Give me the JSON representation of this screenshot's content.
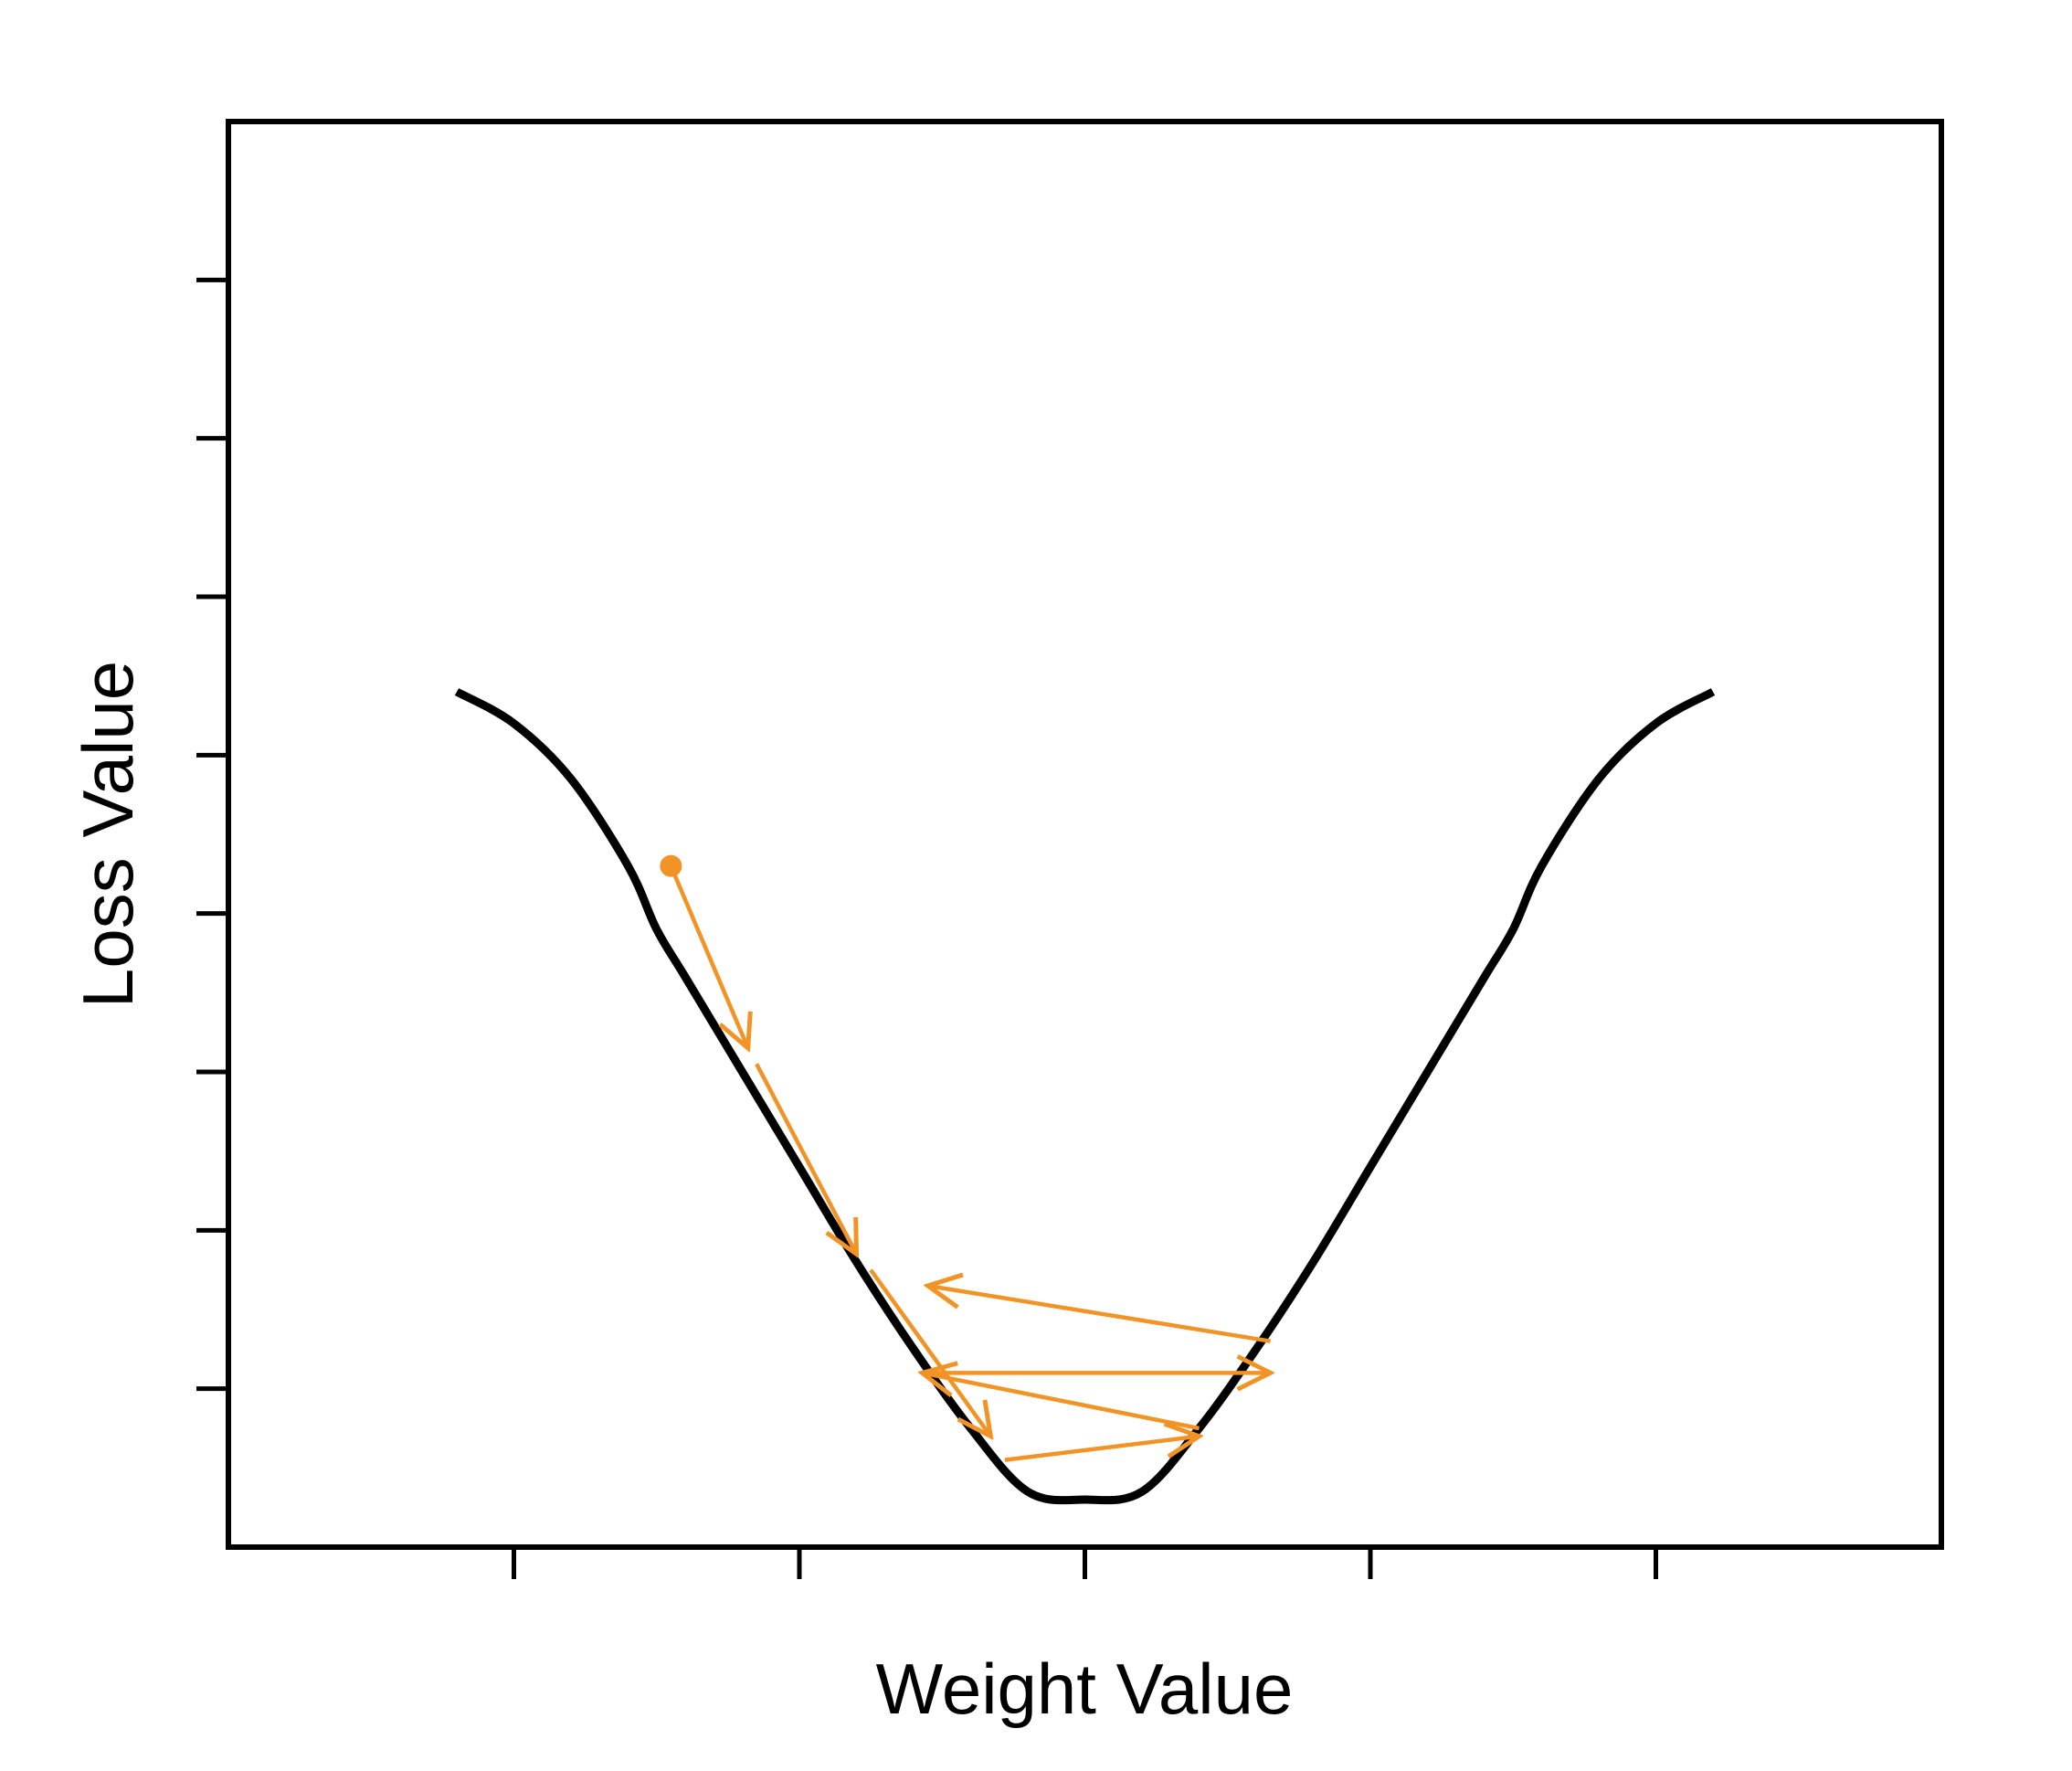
{
  "chart_data": {
    "type": "line",
    "title": "",
    "xlabel": "Weight Value",
    "ylabel": "Loss Value",
    "xlim": [
      -3,
      3
    ],
    "ylim": [
      0,
      1.8
    ],
    "x_ticks": [
      -2,
      -1,
      0,
      1,
      2
    ],
    "y_ticks": [
      0.2,
      0.4,
      0.6,
      0.8,
      1.0,
      1.2,
      1.4,
      1.6
    ],
    "x_tick_labels": [],
    "y_tick_labels": [],
    "grid": false,
    "legend": "none",
    "series": [
      {
        "x": [
          -2.2,
          -2.0,
          -1.8,
          -1.6,
          -1.5,
          -1.4,
          -1.2,
          -1.0,
          -0.8,
          -0.6,
          -0.4,
          -0.2,
          0.0,
          0.2,
          0.4,
          0.6,
          0.8,
          1.0,
          1.2,
          1.4,
          1.5,
          1.6,
          1.8,
          2.0,
          2.2
        ],
        "y": [
          1.08,
          1.04,
          0.97,
          0.86,
          0.78,
          0.72,
          0.6,
          0.48,
          0.36,
          0.25,
          0.15,
          0.07,
          0.06,
          0.07,
          0.15,
          0.25,
          0.36,
          0.48,
          0.6,
          0.72,
          0.78,
          0.86,
          0.97,
          1.04,
          1.08
        ],
        "color": "#000000"
      }
    ],
    "path": {
      "color": "#F29325",
      "start": {
        "x": -1.45,
        "y": 0.86
      },
      "steps": [
        {
          "from": [
            -1.45,
            0.86
          ],
          "to": [
            -1.18,
            0.63
          ]
        },
        {
          "from": [
            -1.15,
            0.61
          ],
          "to": [
            -0.8,
            0.37
          ]
        },
        {
          "from": [
            -0.75,
            0.35
          ],
          "to": [
            -0.33,
            0.14
          ]
        },
        {
          "from": [
            -0.28,
            0.11
          ],
          "to": [
            0.4,
            0.14
          ]
        },
        {
          "from": [
            0.4,
            0.15
          ],
          "to": [
            -0.57,
            0.22
          ]
        },
        {
          "from": [
            -0.57,
            0.22
          ],
          "to": [
            0.65,
            0.22
          ]
        },
        {
          "from": [
            0.65,
            0.26
          ],
          "to": [
            -0.55,
            0.33
          ]
        }
      ]
    }
  }
}
